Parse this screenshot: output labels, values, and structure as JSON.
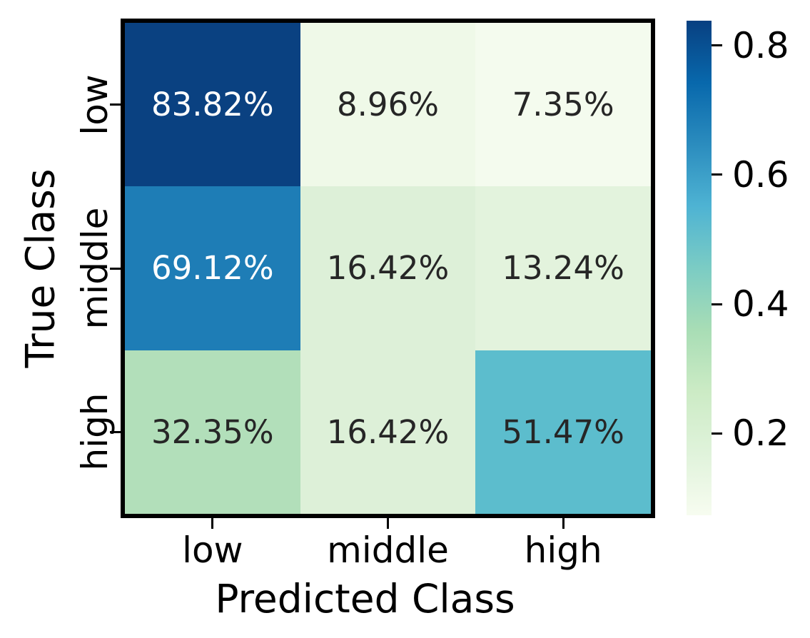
{
  "chart_data": {
    "type": "heatmap",
    "title": "",
    "xlabel": "Predicted Class",
    "ylabel": "True Class",
    "x_categories": [
      "low",
      "middle",
      "high"
    ],
    "y_categories": [
      "low",
      "middle",
      "high"
    ],
    "cell_labels": [
      [
        "83.82%",
        "8.96%",
        "7.35%"
      ],
      [
        "69.12%",
        "16.42%",
        "13.24%"
      ],
      [
        "32.35%",
        "16.42%",
        "51.47%"
      ]
    ],
    "values_fraction": [
      [
        0.8382,
        0.0896,
        0.0735
      ],
      [
        0.6912,
        0.1642,
        0.1324
      ],
      [
        0.3235,
        0.1642,
        0.5147
      ]
    ],
    "cell_colors": [
      [
        "#0a4181",
        "#eff9e8",
        "#f4fbee"
      ],
      [
        "#1e7db6",
        "#ddf0d8",
        "#e3f3dd"
      ],
      [
        "#b2dfba",
        "#ddf0d8",
        "#5cbdcd"
      ]
    ],
    "cell_text_colors": [
      [
        "#ffffff",
        "#262626",
        "#262626"
      ],
      [
        "#ffffff",
        "#262626",
        "#262626"
      ],
      [
        "#262626",
        "#262626",
        "#262626"
      ]
    ],
    "grid": "off",
    "legend": "none",
    "colorbar": {
      "position": "right",
      "colormap": "GnBu",
      "vmin": 0.0735,
      "vmax": 0.8382,
      "tick_values": [
        0.8,
        0.6,
        0.4,
        0.2
      ],
      "tick_labels": [
        "0.8",
        "0.6",
        "0.4",
        "0.2"
      ],
      "gradient_stops_bottom_to_top": [
        "#f7fcf0",
        "#e0f3db",
        "#ccebc5",
        "#a8ddb5",
        "#7bccc4",
        "#4eb3d3",
        "#2b8cbe",
        "#0868ac",
        "#084081"
      ]
    }
  }
}
